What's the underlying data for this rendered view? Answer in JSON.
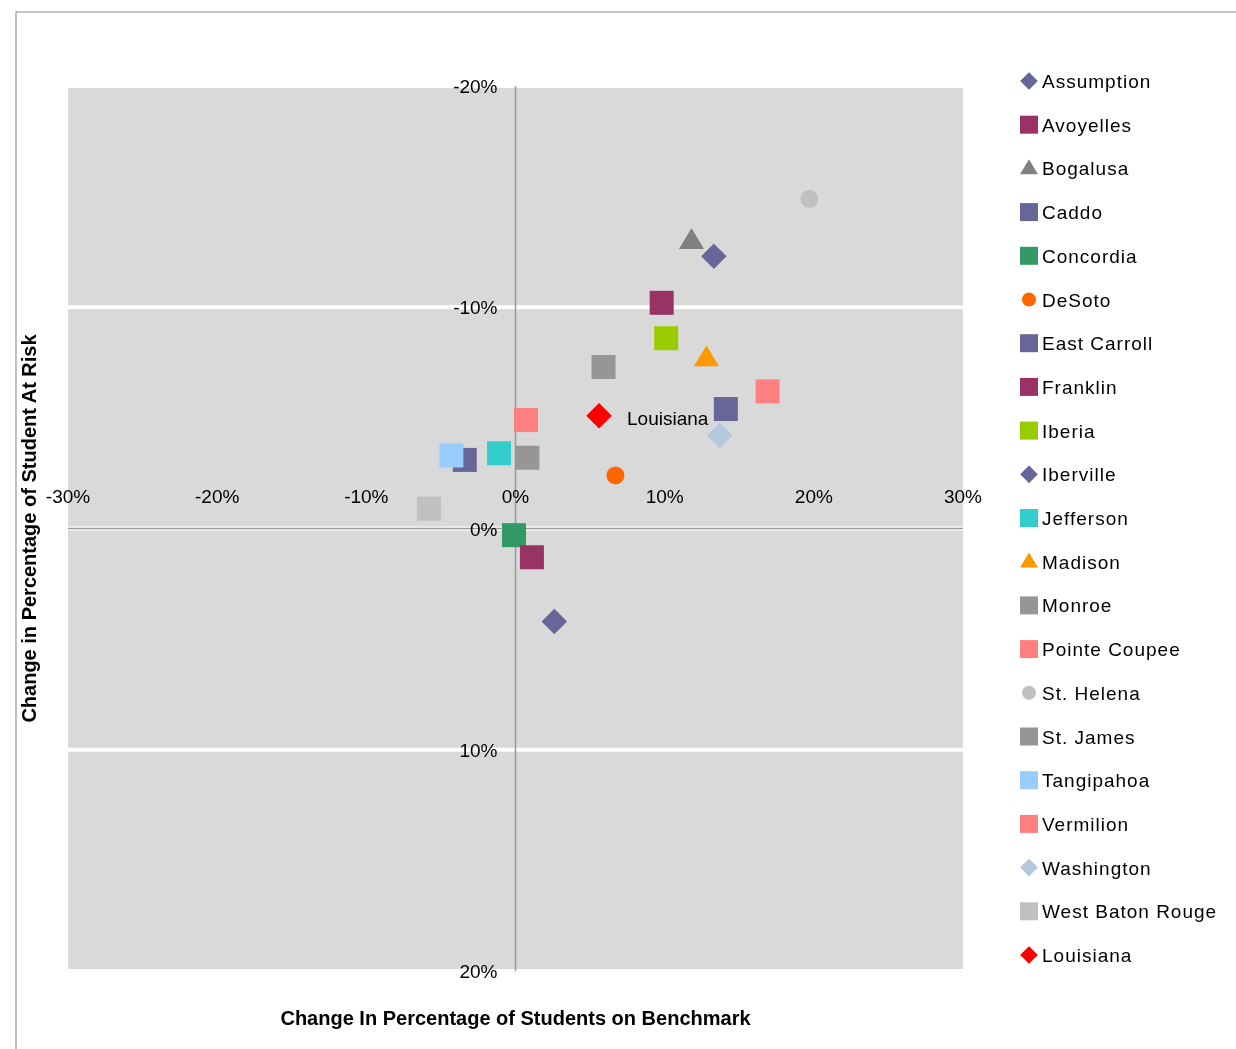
{
  "chart_data": {
    "type": "scatter",
    "xlabel": "Change In Percentage of Students on Benchmark",
    "ylabel": "Change in Percentage of Student At Risk",
    "xlim": [
      -30,
      30
    ],
    "ylim": [
      20,
      -20
    ],
    "xticks": [
      {
        "value": -30,
        "label": "-30%"
      },
      {
        "value": -20,
        "label": "-20%"
      },
      {
        "value": -10,
        "label": "-10%"
      },
      {
        "value": 0,
        "label": "0%"
      },
      {
        "value": 10,
        "label": "10%"
      },
      {
        "value": 20,
        "label": "20%"
      },
      {
        "value": 30,
        "label": "30%"
      }
    ],
    "yticks": [
      {
        "value": -20,
        "label": "-20%"
      },
      {
        "value": -10,
        "label": "-10%"
      },
      {
        "value": 0,
        "label": "0%"
      },
      {
        "value": 10,
        "label": "10%"
      },
      {
        "value": 20,
        "label": "20%"
      }
    ],
    "grid": "y",
    "legend": "right",
    "annotations": [
      {
        "text": "Louisiana",
        "x": 5.6,
        "y": -5.1
      }
    ],
    "series": [
      {
        "name": "Assumption",
        "color": "#666699",
        "marker": "diamond",
        "x": [
          13.3
        ],
        "values": [
          -12.3
        ]
      },
      {
        "name": "Avoyelles",
        "color": "#993366",
        "marker": "square",
        "x": [
          9.8
        ],
        "values": [
          -10.2
        ]
      },
      {
        "name": "Bogalusa",
        "color": "#808080",
        "marker": "triangle",
        "x": [
          11.8
        ],
        "values": [
          -13.0
        ]
      },
      {
        "name": "Caddo",
        "color": "#666699",
        "marker": "square",
        "x": [
          -3.4
        ],
        "values": [
          -3.1
        ]
      },
      {
        "name": "Concordia",
        "color": "#339966",
        "marker": "square",
        "x": [
          -0.1
        ],
        "values": [
          0.3
        ]
      },
      {
        "name": "DeSoto",
        "color": "#ff6600",
        "marker": "circle",
        "x": [
          6.7
        ],
        "values": [
          -2.4
        ]
      },
      {
        "name": "East Carroll",
        "color": "#666699",
        "marker": "square",
        "x": [
          14.1
        ],
        "values": [
          -5.4
        ]
      },
      {
        "name": "Franklin",
        "color": "#993366",
        "marker": "square",
        "x": [
          1.1
        ],
        "values": [
          1.3
        ]
      },
      {
        "name": "Iberia",
        "color": "#99cc00",
        "marker": "square",
        "x": [
          10.1
        ],
        "values": [
          -8.6
        ]
      },
      {
        "name": "Iberville",
        "color": "#666699",
        "marker": "diamond",
        "x": [
          2.6
        ],
        "values": [
          4.2
        ]
      },
      {
        "name": "Jefferson",
        "color": "#33cccc",
        "marker": "square",
        "x": [
          -1.1
        ],
        "values": [
          -3.4
        ]
      },
      {
        "name": "Madison",
        "color": "#ff9900",
        "marker": "triangle",
        "x": [
          12.8
        ],
        "values": [
          -7.7
        ]
      },
      {
        "name": "Monroe",
        "color": "#969696",
        "marker": "square",
        "x": [
          0.8
        ],
        "values": [
          -3.2
        ]
      },
      {
        "name": "Pointe Coupee",
        "color": "#ff8080",
        "marker": "square",
        "x": [
          16.9
        ],
        "values": [
          -6.2
        ]
      },
      {
        "name": "St. Helena",
        "color": "#c0c0c0",
        "marker": "circle",
        "x": [
          19.7
        ],
        "values": [
          -14.9
        ]
      },
      {
        "name": "St. James",
        "color": "#969696",
        "marker": "square",
        "x": [
          5.9
        ],
        "values": [
          -7.3
        ]
      },
      {
        "name": "Tangipahoa",
        "color": "#99ccff",
        "marker": "square",
        "x": [
          -4.3
        ],
        "values": [
          -3.3
        ]
      },
      {
        "name": "Vermilion",
        "color": "#ff8080",
        "marker": "square",
        "x": [
          0.7
        ],
        "values": [
          -4.9
        ]
      },
      {
        "name": "Washington",
        "color": "#b4c8dc",
        "marker": "diamond",
        "x": [
          13.7
        ],
        "values": [
          -4.2
        ]
      },
      {
        "name": "West Baton Rouge",
        "color": "#c0c0c0",
        "marker": "square",
        "x": [
          -5.8
        ],
        "values": [
          -0.9
        ]
      },
      {
        "name": "Louisiana",
        "color": "#ff0000",
        "marker": "diamond",
        "x": [
          5.6
        ],
        "values": [
          -5.1
        ]
      }
    ]
  }
}
